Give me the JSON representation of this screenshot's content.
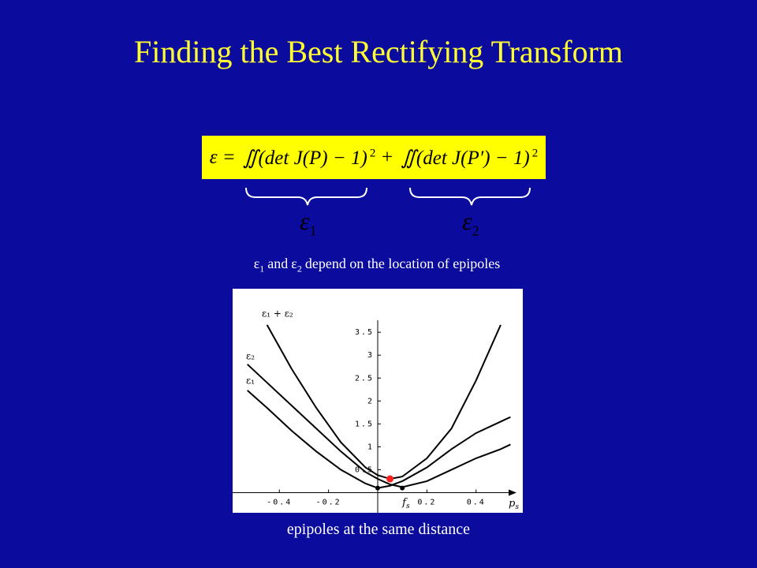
{
  "title": "Finding the Best Rectifying Transform",
  "equation": {
    "lhs": "ε =",
    "term1": "∬(det J(P) − 1)",
    "exp1": "2",
    "plus": "+",
    "term2": "∬(det J(P′) − 1)",
    "exp2": "2"
  },
  "braces": [
    {
      "symbol": "ε",
      "sub": "1"
    },
    {
      "symbol": "ε",
      "sub": "2"
    }
  ],
  "caption": {
    "e1": "ε",
    "s1": "1",
    "and": "and",
    "e2": "ε",
    "s2": "2",
    "rest": "depend on the location of epipoles"
  },
  "chart_data": {
    "type": "line",
    "x": [
      -0.53,
      -0.45,
      -0.35,
      -0.25,
      -0.15,
      -0.05,
      0,
      0.05,
      0.1,
      0.2,
      0.3,
      0.4,
      0.5,
      0.54
    ],
    "series": [
      {
        "name": "ε₁ + ε₂",
        "color": "#000000",
        "values": [
          null,
          3.66,
          2.7,
          1.85,
          1.1,
          0.55,
          0.38,
          0.3,
          0.35,
          0.75,
          1.4,
          2.45,
          3.66,
          null
        ]
      },
      {
        "name": "ε₂",
        "color": "#000000",
        "values": [
          2.8,
          2.4,
          1.9,
          1.4,
          0.9,
          0.45,
          0.3,
          0.18,
          0.12,
          0.25,
          0.5,
          0.75,
          0.95,
          1.05
        ]
      },
      {
        "name": "ε₁",
        "color": "#000000",
        "values": [
          2.23,
          1.85,
          1.35,
          0.9,
          0.5,
          0.2,
          0.1,
          0.15,
          0.25,
          0.55,
          0.95,
          1.3,
          1.55,
          1.65
        ]
      }
    ],
    "markers": [
      {
        "x": 0,
        "y": 0.1,
        "color": "#000000"
      },
      {
        "x": 0.1,
        "y": 0.1,
        "color": "#000000"
      },
      {
        "x": 0.05,
        "y": 0.3,
        "color": "#ff2020"
      }
    ],
    "xlim": [
      -0.59,
      0.59
    ],
    "ylim": [
      -0.44,
      4.45
    ],
    "xticks": [
      -0.4,
      -0.2,
      0.2,
      0.4
    ],
    "yticks": [
      0.5,
      1,
      1.5,
      2,
      2.5,
      3,
      3.5
    ],
    "x_label": {
      "text": "p",
      "sub": "s"
    },
    "fs_label": {
      "text": "f",
      "sub": "s"
    },
    "grid": false
  },
  "footer": "epipoles at the same distance"
}
